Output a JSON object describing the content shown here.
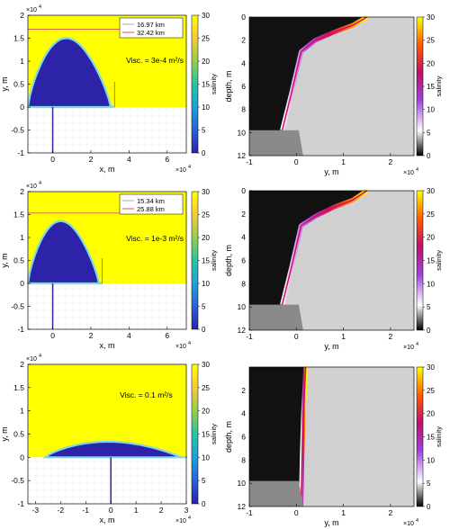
{
  "figure": {
    "common": {
      "xlabel_plan": "x, m",
      "ylabel_plan": "y, m",
      "xlabel_section": "y, m",
      "ylabel_section": "depth, m",
      "colorbar_label": "salinity",
      "exponent_label": "×10",
      "exponent_power": "4"
    }
  },
  "chart_data": [
    {
      "type": "heatmap",
      "title": "",
      "xlabel": "x, m",
      "ylabel": "y, m",
      "xlim": [
        -1.3,
        7
      ],
      "ylim": [
        -1,
        2
      ],
      "x_ticks": [
        0,
        2,
        4,
        6
      ],
      "y_ticks": [
        -1,
        -0.5,
        0,
        0.5,
        1,
        1.5,
        2
      ],
      "tick_multiplier": "x10^4",
      "annotation": "Visc. = 3e-4 m²/s",
      "legend": [
        {
          "label": "16.97  km",
          "color": "#aaaaaa"
        },
        {
          "label": "32.42  km",
          "color": "#e05050"
        }
      ],
      "colorbar": {
        "label": "salinity",
        "min": 0,
        "max": 30,
        "ticks": [
          0,
          5,
          10,
          15,
          20,
          25,
          30
        ]
      },
      "colors": {
        "ocean": "#ffff00",
        "plume": "#2c23a8",
        "front": "#7fd8e8"
      },
      "plume_extent": {
        "x_max": 3.242,
        "y_max": 1.697,
        "x_range": [
          -1.3,
          3.25
        ]
      }
    },
    {
      "type": "heatmap",
      "title": "",
      "xlabel": "y, m",
      "ylabel": "depth, m",
      "xlim": [
        -1,
        2.5
      ],
      "ylim": [
        12,
        0
      ],
      "x_ticks": [
        -1,
        0,
        1,
        2
      ],
      "y_ticks": [
        0,
        2,
        4,
        6,
        8,
        10,
        12
      ],
      "tick_multiplier": "x10^4",
      "colorbar": {
        "label": "salinity",
        "min": 0,
        "max": 30,
        "ticks": [
          0,
          5,
          10,
          15,
          20,
          25,
          30
        ]
      },
      "front_y": [
        -0.3,
        -0.1,
        0.1,
        0.4,
        0.8,
        1.2,
        1.5
      ],
      "front_depth": [
        9.8,
        6.5,
        3.0,
        2.0,
        1.3,
        0.7,
        0
      ]
    },
    {
      "type": "heatmap",
      "title": "",
      "xlabel": "x, m",
      "ylabel": "y, m",
      "xlim": [
        -1.3,
        7
      ],
      "ylim": [
        -1,
        2
      ],
      "x_ticks": [
        0,
        2,
        4,
        6
      ],
      "y_ticks": [
        -1,
        -0.5,
        0,
        0.5,
        1,
        1.5,
        2
      ],
      "tick_multiplier": "x10^4",
      "annotation": "Visc. = 1e-3 m²/s",
      "legend": [
        {
          "label": "15.34  km",
          "color": "#aaaaaa"
        },
        {
          "label": "25.88  km",
          "color": "#e05050"
        }
      ],
      "colorbar": {
        "label": "salinity",
        "min": 0,
        "max": 30,
        "ticks": [
          0,
          5,
          10,
          15,
          20,
          25,
          30
        ]
      },
      "colors": {
        "ocean": "#ffff00",
        "plume": "#2c23a8",
        "front": "#7fd8e8"
      },
      "plume_extent": {
        "x_max": 2.588,
        "y_max": 1.534,
        "x_range": [
          -1.3,
          2.6
        ]
      }
    },
    {
      "type": "heatmap",
      "title": "",
      "xlabel": "y, m",
      "ylabel": "depth, m",
      "xlim": [
        -1,
        2.5
      ],
      "ylim": [
        12,
        0
      ],
      "x_ticks": [
        -1,
        0,
        1,
        2
      ],
      "y_ticks": [
        0,
        2,
        4,
        6,
        8,
        10,
        12
      ],
      "tick_multiplier": "x10^4",
      "colorbar": {
        "label": "salinity",
        "min": 0,
        "max": 30,
        "ticks": [
          0,
          5,
          10,
          15,
          20,
          25,
          30
        ]
      },
      "front_y": [
        -0.3,
        -0.1,
        0.1,
        0.4,
        0.8,
        1.2,
        1.5
      ],
      "front_depth": [
        9.8,
        6.5,
        3.0,
        2.2,
        1.4,
        0.8,
        0
      ]
    },
    {
      "type": "heatmap",
      "title": "",
      "xlabel": "x, m",
      "ylabel": "y, m",
      "xlim": [
        -3.3,
        3
      ],
      "ylim": [
        -1,
        2
      ],
      "x_ticks": [
        -3,
        -2,
        -1,
        0,
        1,
        2,
        3
      ],
      "y_ticks": [
        -1,
        -0.5,
        0,
        0.5,
        1,
        1.5,
        2
      ],
      "tick_multiplier": "x10^4",
      "annotation": "Visc. = 0.1 m²/s",
      "colorbar": {
        "label": "salinity",
        "min": 0,
        "max": 30,
        "ticks": [
          0,
          5,
          10,
          15,
          20,
          25,
          30
        ]
      },
      "colors": {
        "ocean": "#ffff00",
        "plume": "#2c23a8",
        "front": "#7fd8e8"
      },
      "plume_extent": {
        "x_max": 3.0,
        "y_max": 0.38,
        "x_range": [
          -2.6,
          3.0
        ]
      }
    },
    {
      "type": "heatmap",
      "title": "",
      "xlabel": "y, m",
      "ylabel": "depth, m",
      "xlim": [
        -1,
        2.5
      ],
      "ylim": [
        12,
        0
      ],
      "x_ticks": [
        -1,
        0,
        1,
        2
      ],
      "y_ticks": [
        2,
        4,
        6,
        8,
        10,
        12
      ],
      "tick_multiplier": "x10^4",
      "colorbar": {
        "label": "salinity",
        "min": 0,
        "max": 30,
        "ticks": [
          0,
          5,
          10,
          15,
          20,
          25,
          30
        ]
      },
      "front_y": [
        0.1,
        0.12,
        0.15,
        0.2
      ],
      "front_depth": [
        12,
        8,
        4,
        0
      ]
    }
  ]
}
